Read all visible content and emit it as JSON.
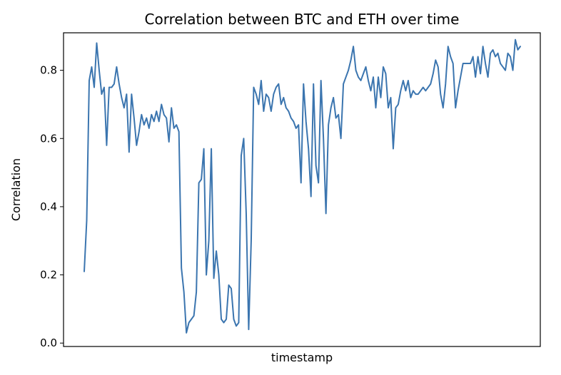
{
  "chart_data": {
    "type": "line",
    "title": "Correlation between BTC and ETH over time",
    "xlabel": "timestamp",
    "ylabel": "Correlation",
    "ylim": [
      -0.01,
      0.91
    ],
    "yticks": [
      0.0,
      0.2,
      0.4,
      0.6,
      0.8
    ],
    "yticklabels": [
      "0.0",
      "0.2",
      "0.4",
      "0.6",
      "0.8"
    ],
    "xticks_shown": false,
    "grid": false,
    "legend": "none",
    "series": [
      {
        "color": "#3b75af",
        "values": [
          0.21,
          0.36,
          0.77,
          0.81,
          0.75,
          0.88,
          0.8,
          0.73,
          0.75,
          0.58,
          0.75,
          0.75,
          0.76,
          0.81,
          0.76,
          0.72,
          0.69,
          0.73,
          0.56,
          0.73,
          0.66,
          0.58,
          0.62,
          0.67,
          0.64,
          0.66,
          0.63,
          0.67,
          0.65,
          0.68,
          0.65,
          0.7,
          0.67,
          0.66,
          0.59,
          0.69,
          0.63,
          0.64,
          0.62,
          0.22,
          0.15,
          0.03,
          0.06,
          0.07,
          0.08,
          0.15,
          0.47,
          0.48,
          0.57,
          0.2,
          0.3,
          0.57,
          0.19,
          0.27,
          0.2,
          0.07,
          0.06,
          0.07,
          0.17,
          0.16,
          0.07,
          0.05,
          0.06,
          0.55,
          0.6,
          0.38,
          0.04,
          0.3,
          0.75,
          0.73,
          0.7,
          0.77,
          0.68,
          0.73,
          0.72,
          0.68,
          0.73,
          0.75,
          0.76,
          0.7,
          0.72,
          0.69,
          0.68,
          0.66,
          0.65,
          0.63,
          0.64,
          0.47,
          0.76,
          0.65,
          0.57,
          0.43,
          0.76,
          0.52,
          0.47,
          0.77,
          0.6,
          0.38,
          0.64,
          0.69,
          0.72,
          0.66,
          0.67,
          0.6,
          0.76,
          0.78,
          0.8,
          0.83,
          0.87,
          0.8,
          0.78,
          0.77,
          0.79,
          0.81,
          0.77,
          0.74,
          0.78,
          0.69,
          0.78,
          0.72,
          0.81,
          0.79,
          0.69,
          0.72,
          0.57,
          0.69,
          0.7,
          0.74,
          0.77,
          0.74,
          0.77,
          0.72,
          0.74,
          0.73,
          0.73,
          0.74,
          0.75,
          0.74,
          0.75,
          0.76,
          0.79,
          0.83,
          0.81,
          0.73,
          0.69,
          0.76,
          0.87,
          0.84,
          0.82,
          0.69,
          0.74,
          0.78,
          0.82,
          0.82,
          0.82,
          0.82,
          0.84,
          0.78,
          0.84,
          0.79,
          0.87,
          0.82,
          0.78,
          0.85,
          0.86,
          0.84,
          0.85,
          0.82,
          0.81,
          0.8,
          0.85,
          0.84,
          0.8,
          0.89,
          0.86,
          0.87
        ]
      }
    ]
  }
}
